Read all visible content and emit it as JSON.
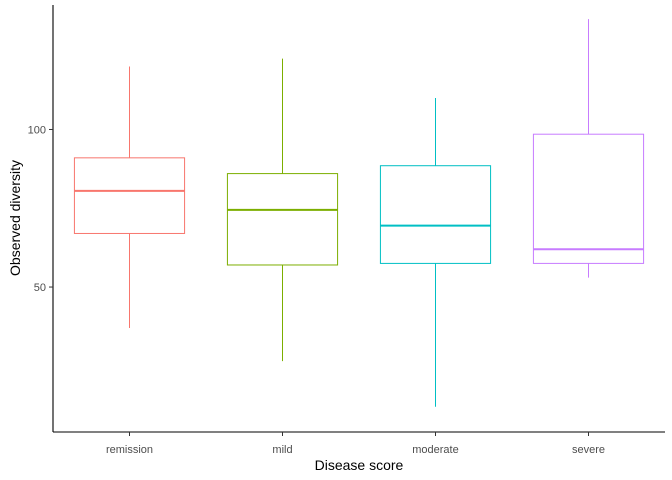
{
  "chart_data": {
    "type": "boxplot",
    "xlabel": "Disease score",
    "ylabel": "Observed diversity",
    "categories": [
      "remission",
      "mild",
      "moderate",
      "severe"
    ],
    "colors": [
      "#F8766D",
      "#7CAE00",
      "#00BFC4",
      "#C77CFF"
    ],
    "boxes": [
      {
        "category": "remission",
        "min": 37,
        "q1": 67,
        "median": 80.5,
        "q3": 91,
        "max": 120
      },
      {
        "category": "mild",
        "min": 26.5,
        "q1": 57,
        "median": 74.5,
        "q3": 86,
        "max": 122.5
      },
      {
        "category": "moderate",
        "min": 12,
        "q1": 57.5,
        "median": 69.5,
        "q3": 88.5,
        "max": 110
      },
      {
        "category": "severe",
        "min": 53,
        "q1": 57.5,
        "median": 62,
        "q3": 98.5,
        "max": 135
      }
    ],
    "yticks": [
      50,
      100
    ],
    "ylim": [
      4,
      139.5
    ],
    "grid": false,
    "legend": "none"
  }
}
